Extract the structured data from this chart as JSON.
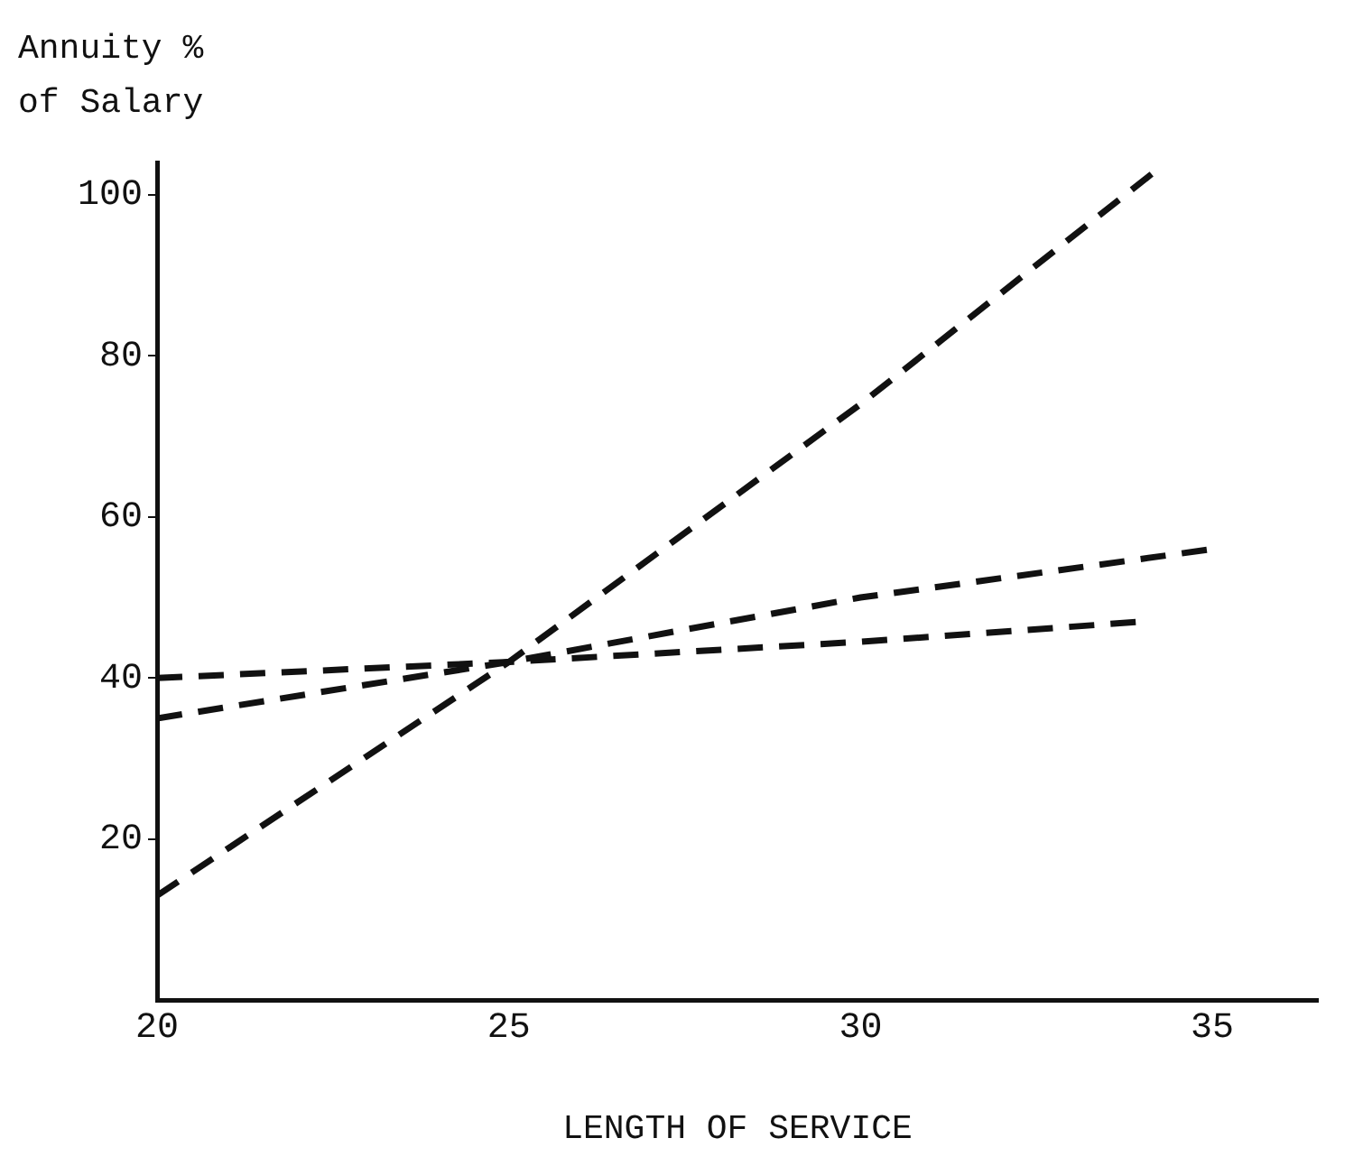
{
  "chart_data": {
    "type": "line",
    "ylabel": "Annuity %\nof Salary",
    "xlabel": "LENGTH OF SERVICE",
    "xlim": [
      20,
      36.5
    ],
    "xticks": [
      20,
      25,
      30,
      35
    ],
    "ylim": [
      0,
      104
    ],
    "yticks": [
      20,
      40,
      60,
      80,
      100
    ],
    "grid": false,
    "legend": false,
    "marker": "none",
    "line_style": "dashed",
    "series": [
      {
        "color": "#111111",
        "x": [
          20,
          25,
          30,
          34.2
        ],
        "values": [
          13,
          42,
          74,
          103
        ]
      },
      {
        "color": "#111111",
        "x": [
          20,
          25,
          30,
          35
        ],
        "values": [
          35,
          42,
          50,
          56
        ]
      },
      {
        "color": "#111111",
        "x": [
          20,
          25,
          30,
          34
        ],
        "values": [
          40,
          42,
          44.5,
          47
        ]
      }
    ]
  }
}
